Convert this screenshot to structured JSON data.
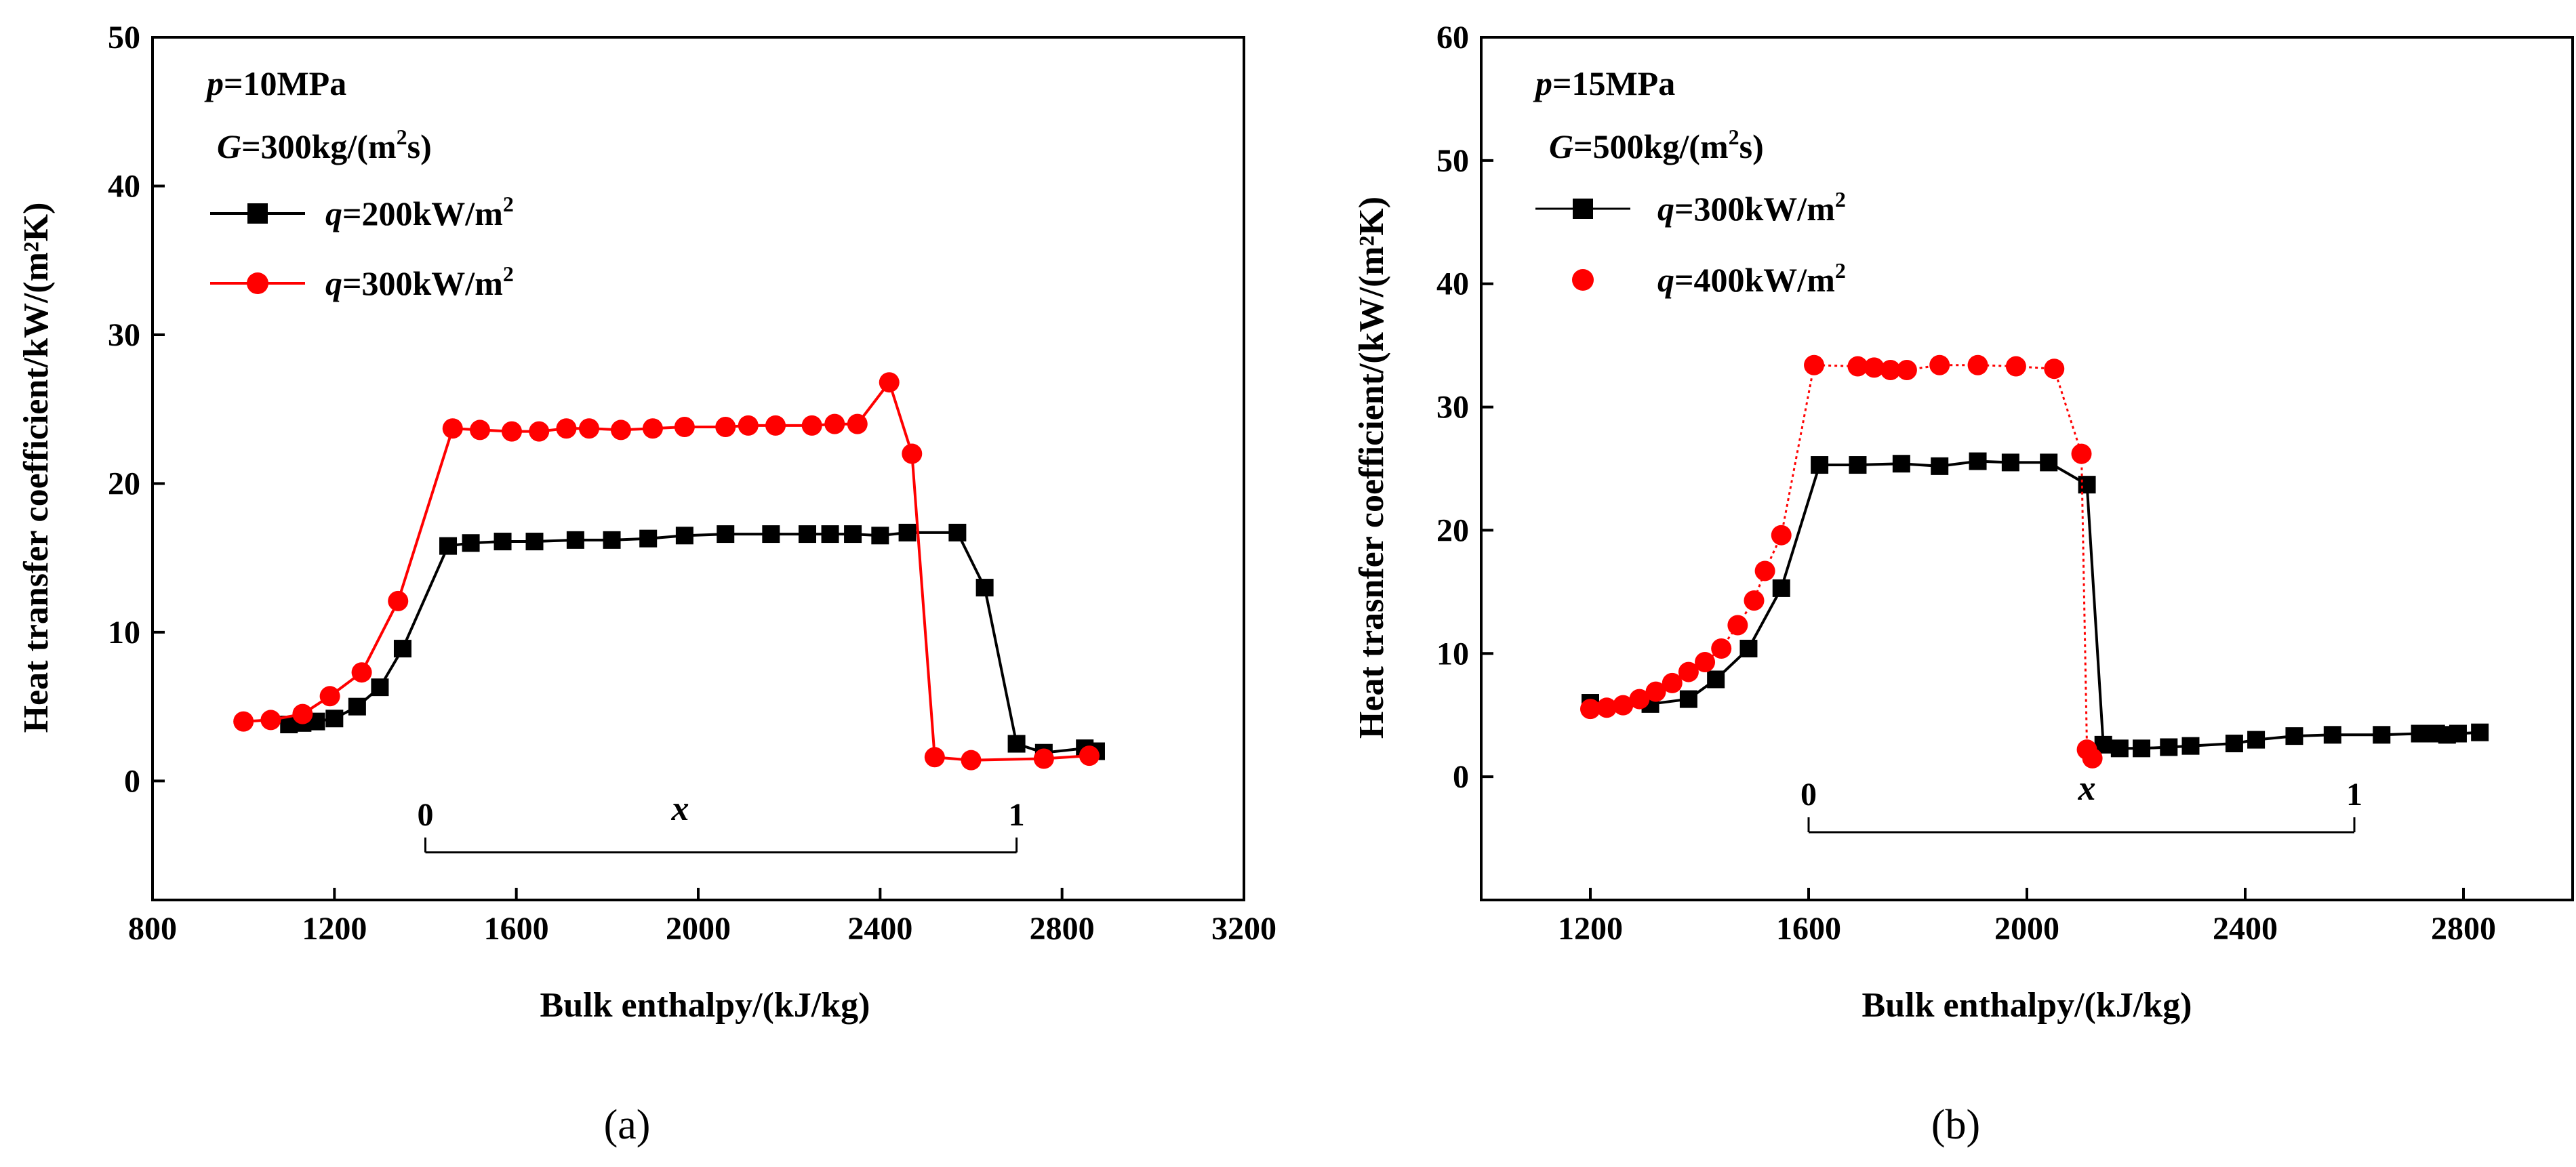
{
  "chart_data": [
    {
      "type": "line",
      "panel_label": "(a)",
      "xlabel": "Bulk enthalpy/(kJ/kg)",
      "ylabel": "Heat transfer coefficient/kW/(m²K)",
      "xlim": [
        800,
        3200
      ],
      "ylim": [
        -8,
        50
      ],
      "xticks": [
        "800",
        "1200",
        "1600",
        "2000",
        "2400",
        "2800",
        "3200"
      ],
      "yticks": [
        "0",
        "10",
        "20",
        "30",
        "40",
        "50"
      ],
      "annotations": {
        "p_var": "p",
        "p_val": "=10MPa",
        "G_var": "G",
        "G_val": "=300kg/(m",
        "G_exp": "2",
        "G_tail": "s)"
      },
      "legend_position": "top-left",
      "quality_scale": {
        "label": "x",
        "start_label": "0",
        "end_label": "1",
        "start": 1400,
        "end": 2700,
        "y": -4.8
      },
      "series": [
        {
          "var": "q",
          "name": "=200kW/m",
          "exp": "2",
          "color": "#000000",
          "marker": "square",
          "line": "solid",
          "x": [
            1100,
            1130,
            1160,
            1200,
            1250,
            1300,
            1350,
            1450,
            1500,
            1570,
            1640,
            1730,
            1810,
            1890,
            1970,
            2060,
            2160,
            2240,
            2290,
            2340,
            2400,
            2460,
            2570,
            2630,
            2700,
            2760,
            2850,
            2875
          ],
          "y": [
            3.8,
            3.9,
            4.0,
            4.2,
            5.0,
            6.3,
            8.9,
            15.8,
            16.0,
            16.1,
            16.1,
            16.2,
            16.2,
            16.3,
            16.5,
            16.6,
            16.6,
            16.6,
            16.6,
            16.6,
            16.5,
            16.7,
            16.7,
            13.0,
            2.5,
            1.9,
            2.2,
            2.0
          ]
        },
        {
          "var": "q",
          "name": "=300kW/m",
          "exp": "2",
          "color": "#ff0000",
          "marker": "circle",
          "line": "solid",
          "x": [
            1000,
            1060,
            1130,
            1190,
            1260,
            1340,
            1460,
            1520,
            1590,
            1650,
            1710,
            1760,
            1830,
            1900,
            1970,
            2060,
            2110,
            2170,
            2250,
            2300,
            2350,
            2420,
            2470,
            2520,
            2600,
            2760,
            2860
          ],
          "y": [
            4.0,
            4.1,
            4.5,
            5.7,
            7.3,
            12.1,
            23.7,
            23.6,
            23.5,
            23.5,
            23.7,
            23.7,
            23.6,
            23.7,
            23.8,
            23.8,
            23.9,
            23.9,
            23.9,
            24.0,
            24.0,
            26.8,
            22.0,
            1.6,
            1.4,
            1.5,
            1.7
          ]
        }
      ]
    },
    {
      "type": "line",
      "panel_label": "(b)",
      "xlabel": "Bulk enthalpy/(kJ/kg)",
      "ylabel": "Heat trasnfer coefficient/(kW/(m²K)",
      "xlim": [
        1000,
        3000
      ],
      "ylim": [
        -10,
        60
      ],
      "xticks": [
        "1200",
        "1600",
        "2000",
        "2400",
        "2800"
      ],
      "yticks": [
        "0",
        "10",
        "20",
        "30",
        "40",
        "50",
        "60"
      ],
      "annotations": {
        "p_var": "p",
        "p_val": "=15MPa",
        "G_var": "G",
        "G_val": "=500kg/(m",
        "G_exp": "2",
        "G_tail": "s)"
      },
      "legend_position": "top-left",
      "quality_scale": {
        "label": "x",
        "start_label": "0",
        "end_label": "1",
        "start": 1600,
        "end": 2600,
        "y": -4.5
      },
      "series": [
        {
          "var": "q",
          "name": "=300kW/m",
          "exp": "2",
          "color": "#000000",
          "marker": "square",
          "line": "solid",
          "x": [
            1200,
            1310,
            1380,
            1430,
            1490,
            1550,
            1620,
            1690,
            1770,
            1840,
            1910,
            1970,
            2040,
            2110,
            2140,
            2170,
            2210,
            2260,
            2300,
            2380,
            2420,
            2490,
            2560,
            2650,
            2720,
            2750,
            2770,
            2790,
            2830
          ],
          "y": [
            6.0,
            5.9,
            6.3,
            7.9,
            10.4,
            15.3,
            25.3,
            25.3,
            25.4,
            25.2,
            25.6,
            25.5,
            25.5,
            23.7,
            2.6,
            2.3,
            2.3,
            2.4,
            2.5,
            2.7,
            3.0,
            3.3,
            3.4,
            3.4,
            3.5,
            3.5,
            3.4,
            3.5,
            3.6
          ]
        },
        {
          "var": "q",
          "name": "=400kW/m",
          "exp": "2",
          "color": "#ff0000",
          "marker": "circle",
          "line": "dotted",
          "x": [
            1200,
            1230,
            1260,
            1290,
            1320,
            1350,
            1380,
            1410,
            1440,
            1470,
            1500,
            1520,
            1550,
            1610,
            1690,
            1720,
            1750,
            1780,
            1840,
            1910,
            1980,
            2050,
            2100,
            2110,
            2120
          ],
          "y": [
            5.5,
            5.6,
            5.8,
            6.3,
            6.9,
            7.6,
            8.5,
            9.3,
            10.4,
            12.3,
            14.3,
            16.7,
            19.6,
            33.4,
            33.3,
            33.2,
            33.0,
            33.0,
            33.4,
            33.4,
            33.3,
            33.1,
            26.2,
            2.2,
            1.5
          ]
        }
      ]
    }
  ]
}
